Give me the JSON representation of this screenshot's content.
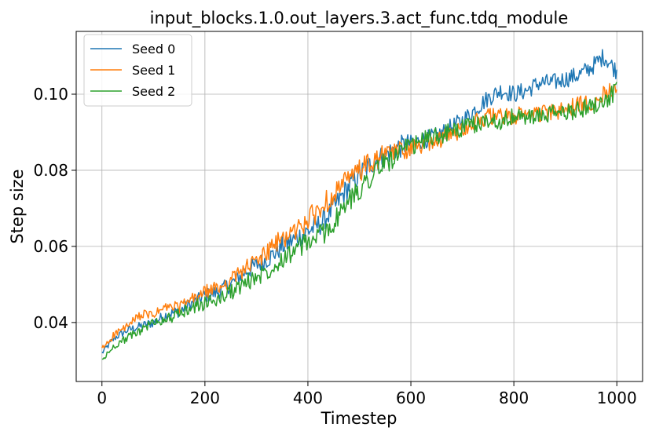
{
  "chart_data": {
    "type": "line",
    "title": "input_blocks.1.0.out_layers.3.act_func.tdq_module",
    "xlabel": "Timestep",
    "ylabel": "Step size",
    "xlim": [
      -50,
      1050
    ],
    "ylim": [
      0.0245,
      0.1165
    ],
    "xticks": [
      0,
      200,
      400,
      600,
      800,
      1000
    ],
    "yticks": [
      0.04,
      0.06,
      0.08,
      0.1
    ],
    "xtick_labels": [
      "0",
      "200",
      "400",
      "600",
      "800",
      "1000"
    ],
    "ytick_labels": [
      "0.04",
      "0.06",
      "0.08",
      "0.10"
    ],
    "grid": true,
    "legend_position": "top-left",
    "x": [
      0,
      25,
      50,
      75,
      100,
      125,
      150,
      175,
      200,
      225,
      250,
      275,
      300,
      325,
      350,
      375,
      400,
      425,
      450,
      475,
      500,
      525,
      550,
      575,
      600,
      625,
      650,
      675,
      700,
      725,
      750,
      775,
      800,
      825,
      850,
      875,
      900,
      925,
      950,
      975,
      1000
    ],
    "series": [
      {
        "name": "Seed 0",
        "color": "#1f77b4",
        "values": [
          0.032,
          0.036,
          0.038,
          0.039,
          0.04,
          0.042,
          0.043,
          0.045,
          0.047,
          0.048,
          0.05,
          0.053,
          0.055,
          0.057,
          0.06,
          0.062,
          0.064,
          0.066,
          0.07,
          0.075,
          0.079,
          0.082,
          0.084,
          0.086,
          0.087,
          0.088,
          0.089,
          0.091,
          0.093,
          0.096,
          0.099,
          0.101,
          0.1,
          0.101,
          0.103,
          0.103,
          0.104,
          0.105,
          0.107,
          0.11,
          0.106
        ]
      },
      {
        "name": "Seed 1",
        "color": "#ff7f0e",
        "values": [
          0.033,
          0.037,
          0.039,
          0.042,
          0.042,
          0.044,
          0.044,
          0.046,
          0.048,
          0.049,
          0.051,
          0.054,
          0.056,
          0.059,
          0.062,
          0.064,
          0.067,
          0.07,
          0.074,
          0.077,
          0.08,
          0.082,
          0.084,
          0.085,
          0.086,
          0.087,
          0.088,
          0.089,
          0.091,
          0.093,
          0.094,
          0.094,
          0.094,
          0.095,
          0.095,
          0.095,
          0.096,
          0.097,
          0.098,
          0.1,
          0.103
        ]
      },
      {
        "name": "Seed 2",
        "color": "#2ca02c",
        "values": [
          0.03,
          0.034,
          0.036,
          0.038,
          0.04,
          0.041,
          0.042,
          0.044,
          0.045,
          0.046,
          0.048,
          0.05,
          0.052,
          0.054,
          0.057,
          0.059,
          0.061,
          0.063,
          0.066,
          0.071,
          0.075,
          0.079,
          0.082,
          0.084,
          0.086,
          0.088,
          0.089,
          0.09,
          0.091,
          0.092,
          0.093,
          0.093,
          0.094,
          0.094,
          0.094,
          0.095,
          0.095,
          0.096,
          0.097,
          0.098,
          0.101
        ]
      }
    ]
  }
}
